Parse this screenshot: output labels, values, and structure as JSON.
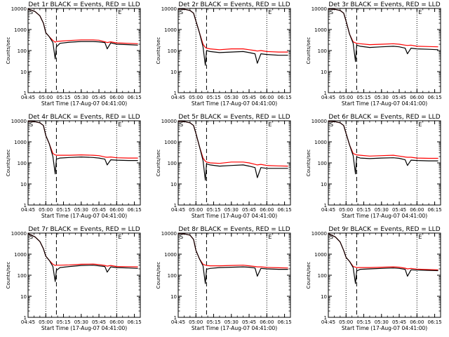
{
  "colors": {
    "events": "#000000",
    "lld": "#ff0000",
    "axes": "#000000",
    "background": "#ffffff"
  },
  "chart_data": [
    {
      "type": "line",
      "title": "Det 1r BLACK = Events, RED = LLD",
      "xlabel": "Start Time (17-Aug-07 04:41:00)",
      "ylabel": "Counts/sec",
      "yscale": "log",
      "ylim": [
        1,
        10000
      ],
      "xlim": [
        "04:45",
        "06:20"
      ],
      "xticks": [
        "04:45",
        "05:00",
        "05:15",
        "05:30",
        "05:45",
        "06:00",
        "06:15"
      ],
      "yticks": [
        "1",
        "10",
        "100",
        "1000",
        "10000"
      ],
      "marker_labels": [
        "S",
        "E"
      ],
      "vlines": [
        {
          "x": "05:00",
          "style": "dotted"
        },
        {
          "x": "05:09",
          "style": "dashed"
        },
        {
          "x": "06:00",
          "style": "dotted"
        }
      ],
      "x": [
        "04:45",
        "04:51",
        "04:55",
        "04:58",
        "05:00",
        "05:03",
        "05:06",
        "05:08",
        "05:09",
        "05:12",
        "05:20",
        "05:30",
        "05:40",
        "05:45",
        "05:50",
        "05:52",
        "05:55",
        "06:00",
        "06:10",
        "06:18"
      ],
      "series": [
        {
          "name": "BLACK = Events",
          "values": [
            9500,
            7000,
            4500,
            2000,
            700,
            450,
            240,
            40,
            150,
            220,
            250,
            270,
            270,
            260,
            240,
            120,
            230,
            200,
            190,
            180
          ]
        },
        {
          "name": "RED = LLD",
          "values": [
            9500,
            7000,
            4500,
            2000,
            700,
            450,
            300,
            250,
            270,
            280,
            300,
            320,
            320,
            310,
            260,
            240,
            260,
            230,
            220,
            210
          ]
        }
      ]
    },
    {
      "type": "line",
      "title": "Det 2r BLACK = Events, RED = LLD",
      "xlabel": "Start Time (17-Aug-07 04:41:00)",
      "ylabel": "Counts/sec",
      "yscale": "log",
      "ylim": [
        1,
        10000
      ],
      "xlim": [
        "04:45",
        "06:20"
      ],
      "xticks": [
        "04:45",
        "05:00",
        "05:15",
        "05:30",
        "05:45",
        "06:00",
        "06:15"
      ],
      "yticks": [
        "1",
        "10",
        "100",
        "1000",
        "10000"
      ],
      "marker_labels": [
        "S",
        "E"
      ],
      "vlines": [
        {
          "x": "05:00",
          "style": "dotted"
        },
        {
          "x": "05:09",
          "style": "dashed"
        },
        {
          "x": "06:00",
          "style": "dotted"
        }
      ],
      "x": [
        "04:45",
        "04:51",
        "04:55",
        "04:58",
        "05:00",
        "05:03",
        "05:06",
        "05:08",
        "05:09",
        "05:12",
        "05:20",
        "05:30",
        "05:40",
        "05:45",
        "05:50",
        "05:52",
        "05:55",
        "06:00",
        "06:10",
        "06:18"
      ],
      "series": [
        {
          "name": "BLACK = Events",
          "values": [
            9500,
            9000,
            8000,
            6000,
            2500,
            700,
            150,
            20,
            100,
            90,
            80,
            85,
            90,
            80,
            70,
            25,
            70,
            65,
            60,
            60
          ]
        },
        {
          "name": "RED = LLD",
          "values": [
            9500,
            9000,
            8000,
            6000,
            2500,
            700,
            200,
            140,
            130,
            120,
            110,
            120,
            120,
            110,
            100,
            95,
            100,
            90,
            85,
            85
          ]
        }
      ]
    },
    {
      "type": "line",
      "title": "Det 3r BLACK = Events, RED = LLD",
      "xlabel": "Start Time (17-Aug-07 04:41:00)",
      "ylabel": "Counts/sec",
      "yscale": "log",
      "ylim": [
        1,
        10000
      ],
      "xlim": [
        "04:45",
        "06:20"
      ],
      "xticks": [
        "04:45",
        "05:00",
        "05:15",
        "05:30",
        "05:45",
        "06:00",
        "06:15"
      ],
      "yticks": [
        "1",
        "10",
        "100",
        "1000",
        "10000"
      ],
      "marker_labels": [
        "S",
        "E"
      ],
      "vlines": [
        {
          "x": "05:00",
          "style": "dotted"
        },
        {
          "x": "05:09",
          "style": "dashed"
        },
        {
          "x": "06:00",
          "style": "dotted"
        }
      ],
      "x": [
        "04:45",
        "04:51",
        "04:55",
        "04:58",
        "05:00",
        "05:03",
        "05:06",
        "05:08",
        "05:09",
        "05:12",
        "05:20",
        "05:30",
        "05:40",
        "05:45",
        "05:50",
        "05:52",
        "05:55",
        "06:00",
        "06:10",
        "06:18"
      ],
      "series": [
        {
          "name": "BLACK = Events",
          "values": [
            9500,
            9000,
            8000,
            6000,
            2500,
            600,
            220,
            30,
            180,
            160,
            140,
            150,
            160,
            150,
            130,
            70,
            130,
            120,
            115,
            110
          ]
        },
        {
          "name": "RED = LLD",
          "values": [
            9500,
            9000,
            8000,
            6000,
            2500,
            600,
            260,
            230,
            220,
            210,
            190,
            200,
            210,
            200,
            180,
            175,
            180,
            160,
            155,
            150
          ]
        }
      ]
    },
    {
      "type": "line",
      "title": "Det 4r BLACK = Events, RED = LLD",
      "xlabel": "Start Time (17-Aug-07 04:41:00)",
      "ylabel": "Counts/sec",
      "yscale": "log",
      "ylim": [
        1,
        10000
      ],
      "xlim": [
        "04:45",
        "06:20"
      ],
      "xticks": [
        "04:45",
        "05:00",
        "05:15",
        "05:30",
        "05:45",
        "06:00",
        "06:15"
      ],
      "yticks": [
        "1",
        "10",
        "100",
        "1000",
        "10000"
      ],
      "marker_labels": [
        "S",
        "E"
      ],
      "vlines": [
        {
          "x": "05:00",
          "style": "dotted"
        },
        {
          "x": "05:09",
          "style": "dashed"
        },
        {
          "x": "06:00",
          "style": "dotted"
        }
      ],
      "x": [
        "04:45",
        "04:51",
        "04:55",
        "04:58",
        "05:00",
        "05:03",
        "05:06",
        "05:08",
        "05:09",
        "05:12",
        "05:20",
        "05:30",
        "05:40",
        "05:45",
        "05:50",
        "05:52",
        "05:55",
        "06:00",
        "06:10",
        "06:18"
      ],
      "series": [
        {
          "name": "BLACK = Events",
          "values": [
            9500,
            9000,
            8000,
            6000,
            2000,
            800,
            200,
            30,
            150,
            170,
            180,
            190,
            180,
            170,
            150,
            80,
            140,
            135,
            130,
            130
          ]
        },
        {
          "name": "RED = LLD",
          "values": [
            9500,
            9000,
            8000,
            6000,
            2000,
            800,
            280,
            240,
            230,
            230,
            230,
            240,
            230,
            220,
            190,
            185,
            190,
            175,
            170,
            170
          ]
        }
      ]
    },
    {
      "type": "line",
      "title": "Det 5r BLACK = Events, RED = LLD",
      "xlabel": "Start Time (17-Aug-07 04:41:00)",
      "ylabel": "Counts/sec",
      "yscale": "log",
      "ylim": [
        1,
        10000
      ],
      "xlim": [
        "04:45",
        "06:20"
      ],
      "xticks": [
        "04:45",
        "05:00",
        "05:15",
        "05:30",
        "05:45",
        "06:00",
        "06:15"
      ],
      "yticks": [
        "1",
        "10",
        "100",
        "1000",
        "10000"
      ],
      "marker_labels": [
        "S",
        "E"
      ],
      "vlines": [
        {
          "x": "05:00",
          "style": "dotted"
        },
        {
          "x": "05:09",
          "style": "dashed"
        },
        {
          "x": "06:00",
          "style": "dotted"
        }
      ],
      "x": [
        "04:45",
        "04:51",
        "04:55",
        "04:58",
        "05:00",
        "05:03",
        "05:06",
        "05:08",
        "05:09",
        "05:12",
        "05:20",
        "05:30",
        "05:40",
        "05:45",
        "05:50",
        "05:52",
        "05:55",
        "06:00",
        "06:10",
        "06:18"
      ],
      "series": [
        {
          "name": "BLACK = Events",
          "values": [
            9500,
            9000,
            8000,
            6000,
            2500,
            600,
            130,
            15,
            90,
            80,
            70,
            75,
            80,
            70,
            60,
            20,
            60,
            55,
            55,
            55
          ]
        },
        {
          "name": "RED = LLD",
          "values": [
            9500,
            9000,
            8000,
            6000,
            2500,
            600,
            170,
            120,
            110,
            100,
            95,
            110,
            110,
            100,
            85,
            80,
            85,
            75,
            72,
            70
          ]
        }
      ]
    },
    {
      "type": "line",
      "title": "Det 6r BLACK = Events, RED = LLD",
      "xlabel": "Start Time (17-Aug-07 04:41:00)",
      "ylabel": "Counts/sec",
      "yscale": "log",
      "ylim": [
        1,
        10000
      ],
      "xlim": [
        "04:45",
        "06:20"
      ],
      "xticks": [
        "04:45",
        "05:00",
        "05:15",
        "05:30",
        "05:45",
        "06:00",
        "06:15"
      ],
      "yticks": [
        "1",
        "10",
        "100",
        "1000",
        "10000"
      ],
      "marker_labels": [
        "S",
        "E"
      ],
      "vlines": [
        {
          "x": "05:00",
          "style": "dotted"
        },
        {
          "x": "05:09",
          "style": "dashed"
        },
        {
          "x": "06:00",
          "style": "dotted"
        }
      ],
      "x": [
        "04:45",
        "04:51",
        "04:55",
        "04:58",
        "05:00",
        "05:03",
        "05:06",
        "05:08",
        "05:09",
        "05:12",
        "05:20",
        "05:30",
        "05:40",
        "05:45",
        "05:50",
        "05:52",
        "05:55",
        "06:00",
        "06:10",
        "06:18"
      ],
      "series": [
        {
          "name": "BLACK = Events",
          "values": [
            9500,
            9000,
            8000,
            6000,
            2500,
            700,
            220,
            30,
            190,
            170,
            160,
            170,
            175,
            165,
            140,
            75,
            135,
            130,
            125,
            125
          ]
        },
        {
          "name": "RED = LLD",
          "values": [
            9500,
            9000,
            8000,
            6000,
            2500,
            700,
            280,
            250,
            240,
            230,
            210,
            220,
            230,
            210,
            190,
            185,
            185,
            170,
            165,
            165
          ]
        }
      ]
    },
    {
      "type": "line",
      "title": "Det 7r BLACK = Events, RED = LLD",
      "xlabel": "Start Time (17-Aug-07 04:41:00)",
      "ylabel": "Counts/sec",
      "yscale": "log",
      "ylim": [
        1,
        10000
      ],
      "xlim": [
        "04:45",
        "06:20"
      ],
      "xticks": [
        "04:45",
        "05:00",
        "05:15",
        "05:30",
        "05:45",
        "06:00",
        "06:15"
      ],
      "yticks": [
        "1",
        "10",
        "100",
        "1000",
        "10000"
      ],
      "marker_labels": [
        "S",
        "E"
      ],
      "vlines": [
        {
          "x": "05:00",
          "style": "dotted"
        },
        {
          "x": "05:09",
          "style": "dashed"
        },
        {
          "x": "06:00",
          "style": "dotted"
        }
      ],
      "x": [
        "04:45",
        "04:51",
        "04:55",
        "04:58",
        "05:00",
        "05:03",
        "05:06",
        "05:08",
        "05:09",
        "05:12",
        "05:20",
        "05:30",
        "05:40",
        "05:45",
        "05:50",
        "05:52",
        "05:55",
        "06:00",
        "06:10",
        "06:18"
      ],
      "series": [
        {
          "name": "BLACK = Events",
          "values": [
            9500,
            6500,
            4000,
            1800,
            800,
            500,
            260,
            50,
            170,
            230,
            260,
            290,
            300,
            280,
            260,
            140,
            250,
            230,
            220,
            210
          ]
        },
        {
          "name": "RED = LLD",
          "values": [
            9500,
            6500,
            4000,
            1800,
            800,
            500,
            330,
            290,
            300,
            300,
            310,
            330,
            340,
            320,
            290,
            270,
            290,
            260,
            255,
            250
          ]
        }
      ]
    },
    {
      "type": "line",
      "title": "Det 8r BLACK = Events, RED = LLD",
      "xlabel": "Start Time (17-Aug-07 04:41:00)",
      "ylabel": "Counts/sec",
      "yscale": "log",
      "ylim": [
        1,
        10000
      ],
      "xlim": [
        "04:45",
        "06:20"
      ],
      "xticks": [
        "04:45",
        "05:00",
        "05:15",
        "05:30",
        "05:45",
        "06:00",
        "06:15"
      ],
      "yticks": [
        "1",
        "10",
        "100",
        "1000",
        "10000"
      ],
      "marker_labels": [
        "S",
        "E"
      ],
      "vlines": [
        {
          "x": "05:00",
          "style": "dotted"
        },
        {
          "x": "05:09",
          "style": "dashed"
        },
        {
          "x": "06:00",
          "style": "dotted"
        }
      ],
      "x": [
        "04:45",
        "04:51",
        "04:55",
        "04:58",
        "05:00",
        "05:03",
        "05:06",
        "05:08",
        "05:09",
        "05:12",
        "05:20",
        "05:30",
        "05:40",
        "05:45",
        "05:50",
        "05:52",
        "05:55",
        "06:00",
        "06:10",
        "06:18"
      ],
      "series": [
        {
          "name": "BLACK = Events",
          "values": [
            9500,
            9000,
            8000,
            5000,
            1500,
            600,
            280,
            40,
            190,
            210,
            230,
            240,
            250,
            240,
            220,
            90,
            210,
            200,
            190,
            190
          ]
        },
        {
          "name": "RED = LLD",
          "values": [
            9500,
            9000,
            8000,
            5000,
            1500,
            600,
            330,
            300,
            290,
            280,
            280,
            290,
            300,
            280,
            260,
            250,
            250,
            235,
            225,
            220
          ]
        }
      ]
    },
    {
      "type": "line",
      "title": "Det 9r BLACK = Events, RED = LLD",
      "xlabel": "Start Time (17-Aug-07 04:41:00)",
      "ylabel": "Counts/sec",
      "yscale": "log",
      "ylim": [
        1,
        10000
      ],
      "xlim": [
        "04:45",
        "06:20"
      ],
      "xticks": [
        "04:45",
        "05:00",
        "05:15",
        "05:30",
        "05:45",
        "06:00",
        "06:15"
      ],
      "yticks": [
        "1",
        "10",
        "100",
        "1000",
        "10000"
      ],
      "marker_labels": [
        "S",
        "E"
      ],
      "vlines": [
        {
          "x": "05:00",
          "style": "dotted"
        },
        {
          "x": "05:09",
          "style": "dashed"
        },
        {
          "x": "06:00",
          "style": "dotted"
        }
      ],
      "x": [
        "04:45",
        "04:51",
        "04:55",
        "04:58",
        "05:00",
        "05:03",
        "05:06",
        "05:08",
        "05:09",
        "05:12",
        "05:20",
        "05:30",
        "05:40",
        "05:45",
        "05:50",
        "05:52",
        "05:55",
        "06:00",
        "06:10",
        "06:18"
      ],
      "series": [
        {
          "name": "BLACK = Events",
          "values": [
            9500,
            6500,
            3800,
            1500,
            700,
            450,
            230,
            40,
            160,
            190,
            200,
            210,
            220,
            210,
            190,
            90,
            180,
            175,
            170,
            165
          ]
        },
        {
          "name": "RED = LLD",
          "values": [
            9500,
            6500,
            3800,
            1500,
            700,
            450,
            260,
            240,
            230,
            230,
            230,
            240,
            250,
            240,
            215,
            200,
            210,
            195,
            185,
            180
          ]
        }
      ]
    }
  ]
}
